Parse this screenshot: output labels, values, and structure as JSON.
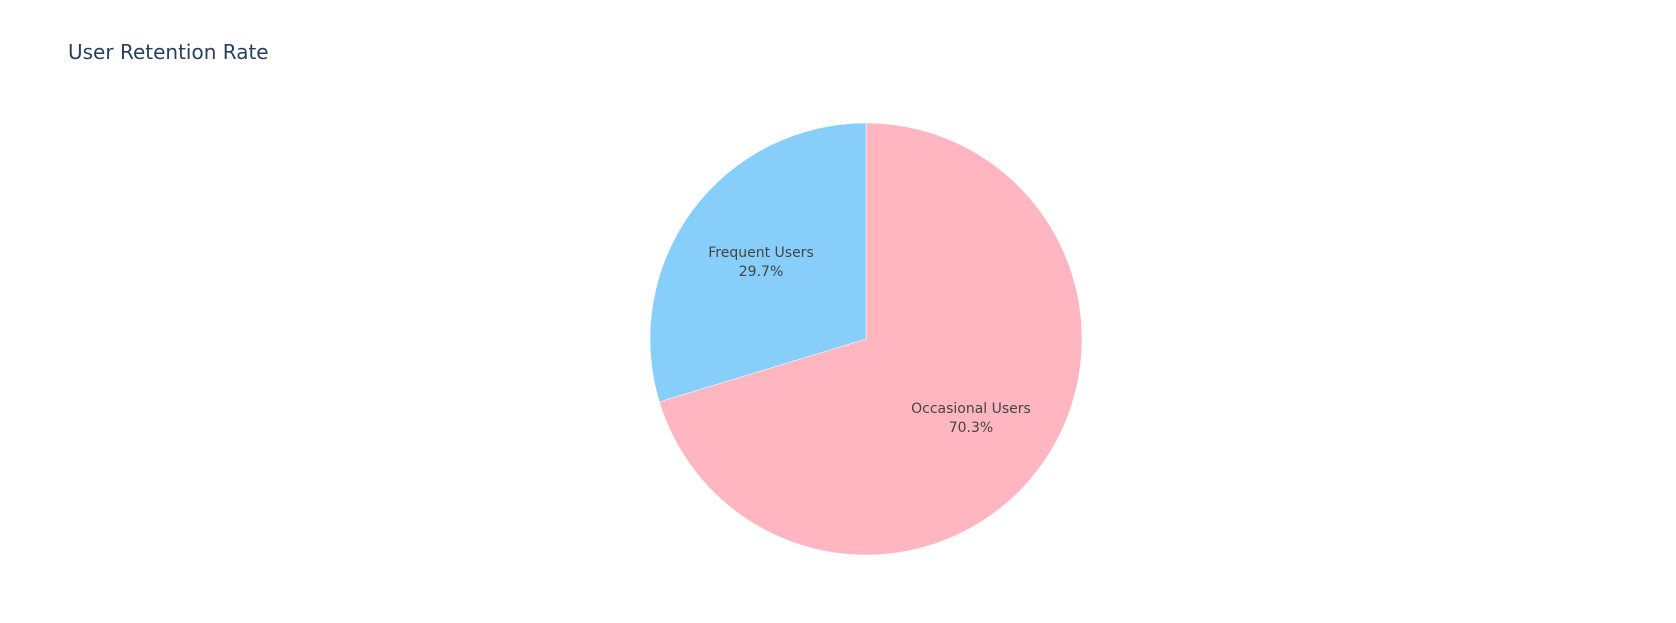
{
  "chart_data": {
    "type": "pie",
    "title": "User Retention Rate",
    "slices": [
      {
        "label": "Occasional Users",
        "value": 70.3,
        "percent_label": "70.3%",
        "color": "#FFB6C1"
      },
      {
        "label": "Frequent Users",
        "value": 29.7,
        "percent_label": "29.7%",
        "color": "#87CEFA"
      }
    ],
    "direction": "clockwise",
    "start": "top",
    "label_position": "inside",
    "legend": "none"
  },
  "theme": {
    "title_color": "#2A3F5F",
    "label_color": "#444444",
    "background": "#FFFFFF"
  }
}
